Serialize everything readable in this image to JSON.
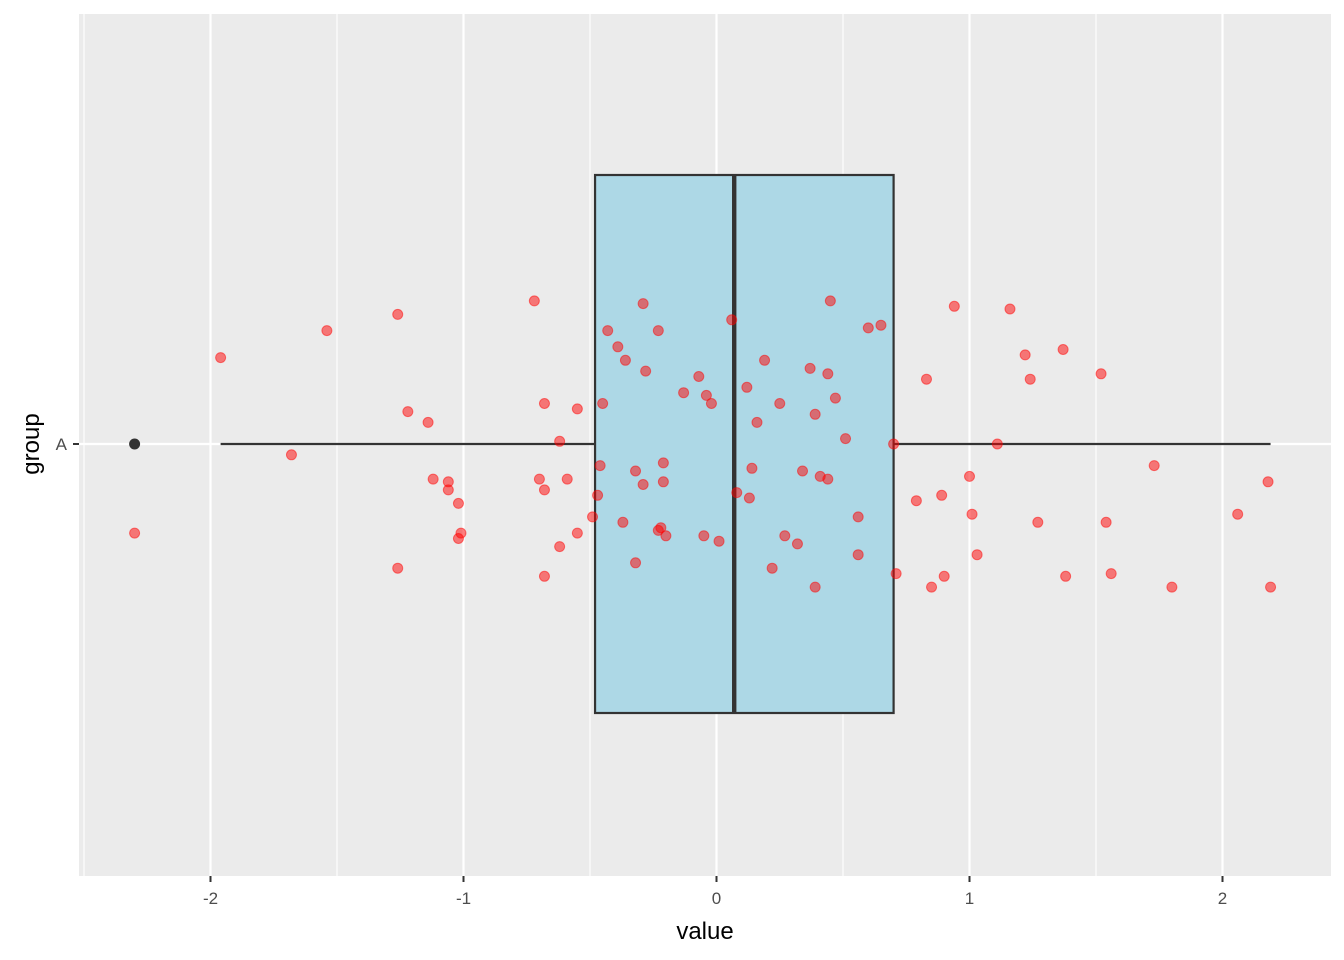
{
  "chart_data": {
    "type": "boxplot",
    "orientation": "horizontal",
    "title": "",
    "xlabel": "value",
    "ylabel": "group",
    "xlim": [
      -2.5,
      2.4
    ],
    "x_ticks": [
      {
        "value": -2,
        "label": "-2"
      },
      {
        "value": -1,
        "label": "-1"
      },
      {
        "value": 0,
        "label": "0"
      },
      {
        "value": 1,
        "label": "1"
      },
      {
        "value": 2,
        "label": "2"
      }
    ],
    "categories": [
      "A"
    ],
    "grid": true,
    "box": {
      "group": "A",
      "whisker_low": -1.96,
      "q1": -0.48,
      "median": 0.07,
      "q3": 0.7,
      "whisker_high": 2.19,
      "outliers": [
        -2.3
      ],
      "fill": "#add8e6",
      "stroke": "#333333"
    },
    "jitter_color": "#ff0000",
    "points": [
      {
        "x": -2.3,
        "y": -0.33
      },
      {
        "x": -1.96,
        "y": 0.32
      },
      {
        "x": -1.68,
        "y": -0.04
      },
      {
        "x": -1.54,
        "y": 0.42
      },
      {
        "x": -1.26,
        "y": 0.48
      },
      {
        "x": -1.22,
        "y": 0.12
      },
      {
        "x": -1.14,
        "y": 0.08
      },
      {
        "x": -1.12,
        "y": -0.13
      },
      {
        "x": -1.06,
        "y": -0.14
      },
      {
        "x": -1.06,
        "y": -0.17
      },
      {
        "x": -1.02,
        "y": -0.22
      },
      {
        "x": -1.01,
        "y": -0.33
      },
      {
        "x": -1.02,
        "y": -0.35
      },
      {
        "x": -1.26,
        "y": -0.46
      },
      {
        "x": -0.72,
        "y": 0.53
      },
      {
        "x": -0.68,
        "y": 0.15
      },
      {
        "x": -0.7,
        "y": -0.13
      },
      {
        "x": -0.68,
        "y": -0.17
      },
      {
        "x": -0.62,
        "y": 0.01
      },
      {
        "x": -0.59,
        "y": -0.13
      },
      {
        "x": -0.55,
        "y": 0.13
      },
      {
        "x": -0.55,
        "y": -0.33
      },
      {
        "x": -0.62,
        "y": -0.38
      },
      {
        "x": -0.68,
        "y": -0.49
      },
      {
        "x": -0.49,
        "y": -0.27
      },
      {
        "x": -0.47,
        "y": -0.19
      },
      {
        "x": -0.46,
        "y": -0.08
      },
      {
        "x": -0.45,
        "y": 0.15
      },
      {
        "x": -0.43,
        "y": 0.42
      },
      {
        "x": -0.39,
        "y": 0.36
      },
      {
        "x": -0.36,
        "y": 0.31
      },
      {
        "x": -0.37,
        "y": -0.29
      },
      {
        "x": -0.32,
        "y": -0.1
      },
      {
        "x": -0.32,
        "y": -0.44
      },
      {
        "x": -0.29,
        "y": 0.52
      },
      {
        "x": -0.28,
        "y": 0.27
      },
      {
        "x": -0.29,
        "y": -0.15
      },
      {
        "x": -0.23,
        "y": 0.42
      },
      {
        "x": -0.21,
        "y": -0.07
      },
      {
        "x": -0.21,
        "y": -0.14
      },
      {
        "x": -0.22,
        "y": -0.31
      },
      {
        "x": -0.2,
        "y": -0.34
      },
      {
        "x": -0.23,
        "y": -0.32
      },
      {
        "x": -0.13,
        "y": 0.19
      },
      {
        "x": -0.07,
        "y": 0.25
      },
      {
        "x": -0.04,
        "y": 0.18
      },
      {
        "x": -0.02,
        "y": 0.15
      },
      {
        "x": -0.05,
        "y": -0.34
      },
      {
        "x": 0.01,
        "y": -0.36
      },
      {
        "x": 0.06,
        "y": 0.46
      },
      {
        "x": 0.08,
        "y": -0.18
      },
      {
        "x": 0.12,
        "y": 0.21
      },
      {
        "x": 0.13,
        "y": -0.2
      },
      {
        "x": 0.14,
        "y": -0.09
      },
      {
        "x": 0.16,
        "y": 0.08
      },
      {
        "x": 0.19,
        "y": 0.31
      },
      {
        "x": 0.22,
        "y": -0.46
      },
      {
        "x": 0.25,
        "y": 0.15
      },
      {
        "x": 0.27,
        "y": -0.34
      },
      {
        "x": 0.32,
        "y": -0.37
      },
      {
        "x": 0.34,
        "y": -0.1
      },
      {
        "x": 0.37,
        "y": 0.28
      },
      {
        "x": 0.39,
        "y": 0.11
      },
      {
        "x": 0.39,
        "y": -0.53
      },
      {
        "x": 0.41,
        "y": -0.12
      },
      {
        "x": 0.44,
        "y": -0.13
      },
      {
        "x": 0.44,
        "y": 0.26
      },
      {
        "x": 0.45,
        "y": 0.53
      },
      {
        "x": 0.47,
        "y": 0.17
      },
      {
        "x": 0.51,
        "y": 0.02
      },
      {
        "x": 0.56,
        "y": -0.27
      },
      {
        "x": 0.56,
        "y": -0.41
      },
      {
        "x": 0.6,
        "y": 0.43
      },
      {
        "x": 0.65,
        "y": 0.44
      },
      {
        "x": 0.7,
        "y": 0.0
      },
      {
        "x": 0.71,
        "y": -0.48
      },
      {
        "x": 0.79,
        "y": -0.21
      },
      {
        "x": 0.83,
        "y": 0.24
      },
      {
        "x": 0.85,
        "y": -0.53
      },
      {
        "x": 0.89,
        "y": -0.19
      },
      {
        "x": 0.9,
        "y": -0.49
      },
      {
        "x": 0.94,
        "y": 0.51
      },
      {
        "x": 1.0,
        "y": -0.12
      },
      {
        "x": 1.01,
        "y": -0.26
      },
      {
        "x": 1.03,
        "y": -0.41
      },
      {
        "x": 1.11,
        "y": 0.0
      },
      {
        "x": 1.16,
        "y": 0.5
      },
      {
        "x": 1.22,
        "y": 0.33
      },
      {
        "x": 1.24,
        "y": 0.24
      },
      {
        "x": 1.27,
        "y": -0.29
      },
      {
        "x": 1.37,
        "y": 0.35
      },
      {
        "x": 1.38,
        "y": -0.49
      },
      {
        "x": 1.52,
        "y": 0.26
      },
      {
        "x": 1.54,
        "y": -0.29
      },
      {
        "x": 1.56,
        "y": -0.48
      },
      {
        "x": 1.73,
        "y": -0.08
      },
      {
        "x": 1.8,
        "y": -0.53
      },
      {
        "x": 2.06,
        "y": -0.26
      },
      {
        "x": 2.18,
        "y": -0.14
      },
      {
        "x": 2.19,
        "y": -0.53
      }
    ]
  }
}
